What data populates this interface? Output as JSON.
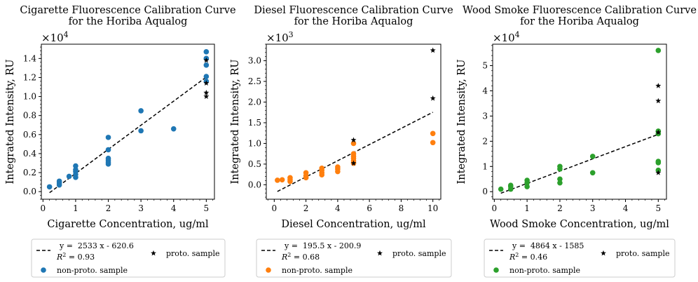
{
  "chart_data": [
    {
      "type": "scatter",
      "title": "Cigarette Fluorescence Calibration Curve\nfor the Horiba Aqualog",
      "xlabel": "Cigarette Concentration, ug/ml",
      "ylabel": "Integrated Intensity, RU",
      "offset_label": "×10^4",
      "xlim": [
        -0.05,
        5.25
      ],
      "ylim": [
        -0.08,
        1.55
      ],
      "xticks": [
        0,
        1,
        2,
        3,
        4,
        5
      ],
      "yticks": [
        0.0,
        0.2,
        0.4,
        0.6,
        0.8,
        1.0,
        1.2,
        1.4
      ],
      "grid": false,
      "legend_position": "below",
      "colors": {
        "points": "#1f77b4",
        "proto": "#000000",
        "fit": "#000000"
      },
      "series": [
        {
          "name": "non-proto. sample",
          "marker": "circle",
          "points": [
            [
              0.2,
              0.05
            ],
            [
              0.5,
              0.07
            ],
            [
              0.5,
              0.09
            ],
            [
              0.5,
              0.11
            ],
            [
              0.8,
              0.16
            ],
            [
              1,
              0.15
            ],
            [
              1,
              0.18
            ],
            [
              1,
              0.21
            ],
            [
              1,
              0.23
            ],
            [
              1,
              0.27
            ],
            [
              2,
              0.29
            ],
            [
              2,
              0.31
            ],
            [
              2,
              0.33
            ],
            [
              2,
              0.35
            ],
            [
              2,
              0.44
            ],
            [
              2,
              0.57
            ],
            [
              3,
              0.64
            ],
            [
              3,
              0.85
            ],
            [
              4,
              0.66
            ],
            [
              5,
              1.16
            ],
            [
              5,
              1.21
            ],
            [
              5,
              1.33
            ],
            [
              5,
              1.4
            ],
            [
              5,
              1.47
            ]
          ]
        },
        {
          "name": "proto. sample",
          "marker": "star",
          "points": [
            [
              5,
              1.0
            ],
            [
              5,
              1.04
            ],
            [
              5,
              1.14
            ],
            [
              5,
              1.38
            ]
          ]
        }
      ],
      "fit": {
        "slope": 2533,
        "intercept": -620.6,
        "x_range": [
          0.2,
          5
        ],
        "scale": 10000,
        "equation": "y =  2533 x - 620.6",
        "r2": "= 0.93"
      }
    },
    {
      "type": "scatter",
      "title": "Diesel Fluorescence Calibration Curve\nfor the Horiba Aqualog",
      "xlabel": "Diesel Concentration, ug/ml",
      "ylabel": "Integrated Intensity, RU",
      "offset_label": "×10^3",
      "xlim": [
        -0.5,
        10.5
      ],
      "ylim": [
        -0.35,
        3.4
      ],
      "xticks": [
        0,
        2,
        4,
        6,
        8,
        10
      ],
      "yticks": [
        0.0,
        0.5,
        1.0,
        1.5,
        2.0,
        2.5,
        3.0
      ],
      "grid": false,
      "legend_position": "below",
      "colors": {
        "points": "#ff7f0e",
        "proto": "#000000",
        "fit": "#000000"
      },
      "series": [
        {
          "name": "non-proto. sample",
          "marker": "circle",
          "points": [
            [
              0.2,
              0.11
            ],
            [
              0.5,
              0.12
            ],
            [
              1,
              0.08
            ],
            [
              1,
              0.12
            ],
            [
              1,
              0.17
            ],
            [
              2,
              0.17
            ],
            [
              2,
              0.22
            ],
            [
              2,
              0.29
            ],
            [
              3,
              0.24
            ],
            [
              3,
              0.29
            ],
            [
              3,
              0.35
            ],
            [
              3,
              0.4
            ],
            [
              4,
              0.32
            ],
            [
              4,
              0.38
            ],
            [
              4,
              0.43
            ],
            [
              5,
              0.52
            ],
            [
              5,
              0.58
            ],
            [
              5,
              0.64
            ],
            [
              5,
              0.69
            ],
            [
              5,
              0.75
            ],
            [
              5,
              1.0
            ],
            [
              10,
              1.02
            ],
            [
              10,
              1.24
            ]
          ]
        },
        {
          "name": "proto. sample",
          "marker": "star",
          "points": [
            [
              5,
              0.52
            ],
            [
              5,
              1.08
            ],
            [
              10,
              2.09
            ],
            [
              10,
              3.25
            ]
          ]
        }
      ],
      "fit": {
        "slope": 195.5,
        "intercept": -200.9,
        "x_range": [
          0.2,
          10
        ],
        "scale": 1000,
        "equation": "y =  195.5 x - 200.9",
        "r2": "= 0.68"
      }
    },
    {
      "type": "scatter",
      "title": "Wood Smoke Fluorescence Calibration Curve\nfor the Horiba Aqualog",
      "xlabel": "Wood Smoke Concentration, ug/ml",
      "ylabel": "Integrated Intensity, RU",
      "offset_label": "×10^4",
      "xlim": [
        -0.05,
        5.25
      ],
      "ylim": [
        -0.3,
        5.85
      ],
      "xticks": [
        0,
        1,
        2,
        3,
        4,
        5
      ],
      "yticks": [
        0,
        1,
        2,
        3,
        4,
        5
      ],
      "grid": false,
      "legend_position": "below",
      "colors": {
        "points": "#2ca02c",
        "proto": "#000000",
        "fit": "#000000"
      },
      "series": [
        {
          "name": "non-proto. sample",
          "marker": "circle",
          "points": [
            [
              0.2,
              0.1
            ],
            [
              0.5,
              0.1
            ],
            [
              0.5,
              0.2
            ],
            [
              0.5,
              0.25
            ],
            [
              1,
              0.2
            ],
            [
              1,
              0.35
            ],
            [
              1,
              0.45
            ],
            [
              2,
              0.35
            ],
            [
              2,
              0.5
            ],
            [
              2,
              0.9
            ],
            [
              2,
              1.0
            ],
            [
              3,
              0.75
            ],
            [
              3,
              1.4
            ],
            [
              5,
              0.85
            ],
            [
              5,
              1.15
            ],
            [
              5,
              1.2
            ],
            [
              5,
              2.3
            ],
            [
              5,
              2.4
            ],
            [
              5,
              5.6
            ]
          ]
        },
        {
          "name": "proto. sample",
          "marker": "star",
          "points": [
            [
              5,
              0.75
            ],
            [
              5,
              2.35
            ],
            [
              5,
              3.6
            ],
            [
              5,
              4.2
            ]
          ]
        }
      ],
      "fit": {
        "slope": 4864,
        "intercept": -1585,
        "x_range": [
          0.2,
          5
        ],
        "scale": 10000,
        "equation": "y =  4864 x - 1585",
        "r2": "= 0.46"
      }
    }
  ]
}
